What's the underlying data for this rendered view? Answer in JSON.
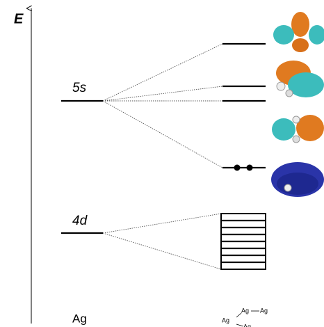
{
  "axis": {
    "label": "E"
  },
  "levels": {
    "upper": "5s",
    "lower": "4d"
  },
  "atom": "Ag",
  "cluster": {
    "atoms": [
      "Ag",
      "Ag",
      "Ag",
      "Ag"
    ]
  }
}
